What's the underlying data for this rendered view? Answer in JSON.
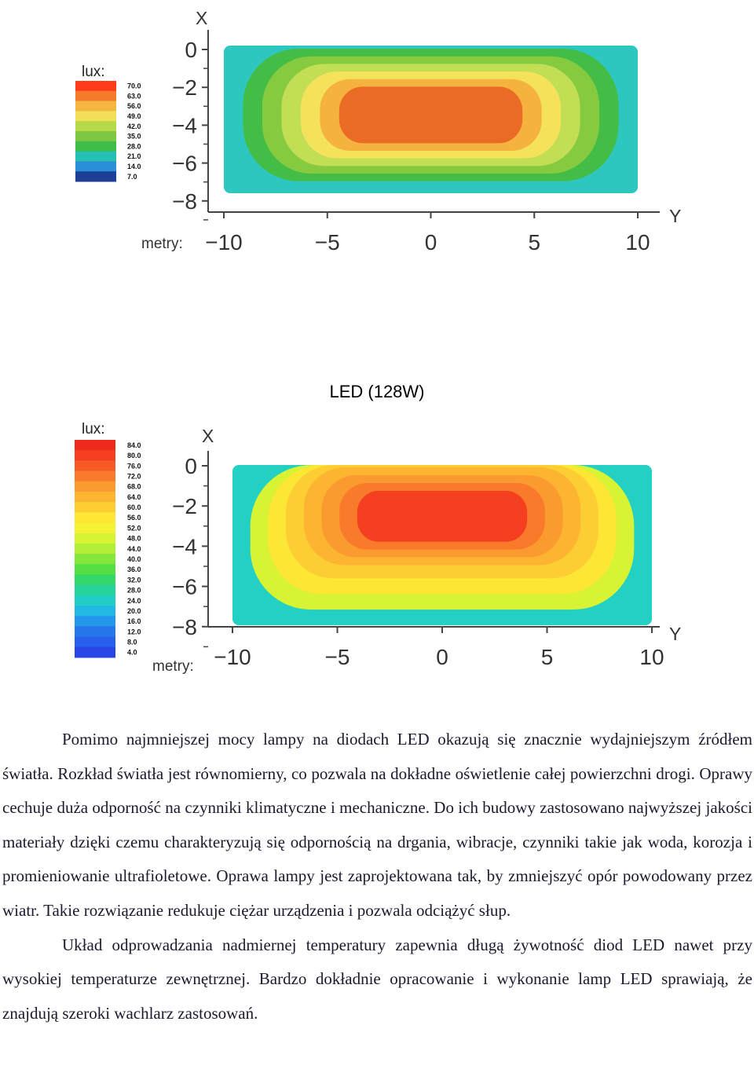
{
  "chart_data": [
    {
      "type": "heatmap",
      "title": "",
      "unit_label": "lux:",
      "axis_x_label": "X",
      "axis_y_label": "Y",
      "meters_label": "metry:",
      "x_ticks": [
        "0",
        "−2",
        "−4",
        "−6",
        "−8"
      ],
      "y_ticks": [
        "−10",
        "−5",
        "0",
        "5",
        "10"
      ],
      "x_range": [
        0,
        -9
      ],
      "y_range": [
        -10,
        10
      ],
      "legend_values": [
        "70.0",
        "63.0",
        "56.0",
        "49.0",
        "42.0",
        "35.0",
        "28.0",
        "21.0",
        "14.0",
        "7.0"
      ],
      "legend_colors": [
        "#ff3b1a",
        "#f47a2c",
        "#f5b640",
        "#f3e05a",
        "#b6d94a",
        "#7fc844",
        "#3fbd48",
        "#26bfb4",
        "#2b8fd8",
        "#1d3f98"
      ],
      "bands": [
        {
          "level": 21.0,
          "color": "#2ec7c0"
        },
        {
          "level": 28.0,
          "color": "#44bd46"
        },
        {
          "level": 35.0,
          "color": "#86ca3f"
        },
        {
          "level": 42.0,
          "color": "#c2de55"
        },
        {
          "level": 49.0,
          "color": "#f4e25b"
        },
        {
          "level": 56.0,
          "color": "#f5b23f"
        },
        {
          "level": 63.0,
          "color": "#ea6c24"
        }
      ]
    },
    {
      "type": "heatmap",
      "title": "",
      "unit_label": "lux:",
      "axis_x_label": "X",
      "axis_y_label": "Y",
      "meters_label": "metry:",
      "x_ticks": [
        "0",
        "−2",
        "−4",
        "−6",
        "−8"
      ],
      "y_ticks": [
        "−10",
        "−5",
        "0",
        "5",
        "10"
      ],
      "x_range": [
        0,
        -9
      ],
      "y_range": [
        -10,
        10
      ],
      "legend_values": [
        "84.0",
        "80.0",
        "76.0",
        "72.0",
        "68.0",
        "64.0",
        "60.0",
        "56.0",
        "52.0",
        "48.0",
        "44.0",
        "40.0",
        "36.0",
        "32.0",
        "28.0",
        "24.0",
        "20.0",
        "16.0",
        "12.0",
        "8.0",
        "4.0"
      ],
      "legend_colors": [
        "#ee2a1c",
        "#f44020",
        "#f75a24",
        "#f97a2a",
        "#fb9a2e",
        "#fdb431",
        "#fdce33",
        "#fde634",
        "#f5f233",
        "#d8f234",
        "#b2ee36",
        "#84e63a",
        "#56de45",
        "#33d868",
        "#25d39a",
        "#22cdc6",
        "#23b8e4",
        "#2496ec",
        "#2677ec",
        "#275eea",
        "#2745e4"
      ],
      "bands": [
        {
          "level": 40.0,
          "color": "#22d0c4"
        },
        {
          "level": 52.0,
          "color": "#d8f234"
        },
        {
          "level": 60.0,
          "color": "#fde634"
        },
        {
          "level": 64.0,
          "color": "#fdce33"
        },
        {
          "level": 68.0,
          "color": "#fdb431"
        },
        {
          "level": 72.0,
          "color": "#fb9a2e"
        },
        {
          "level": 76.0,
          "color": "#f97a2a"
        },
        {
          "level": 80.0,
          "color": "#f44020"
        }
      ]
    }
  ],
  "caption": "LED (128W)",
  "paragraphs": [
    "Pomimo najmniejszej mocy lampy na diodach LED okazują się znacznie wydajniejszym źródłem światła. Rozkład światła jest równomierny, co pozwala na dokładne oświetlenie całej powierzchni drogi. Oprawy cechuje duża odporność na czynniki klimatyczne i mechaniczne. Do ich budowy zastosowano najwyższej jakości materiały dzięki czemu charakteryzują się odpornością na drgania, wibracje, czynniki takie jak woda, korozja i promieniowanie ultrafioletowe. Oprawa lampy jest zaprojektowana tak, by zmniejszyć opór powodowany przez wiatr. Takie rozwiązanie redukuje ciężar urządzenia i pozwala odciążyć słup.",
    "Układ odprowadzania nadmiernej temperatury zapewnia długą żywotność diod LED nawet przy wysokiej temperaturze zewnętrznej. Bardzo dokładnie opracowanie i wykonanie lamp LED sprawiają, że znajdują szeroki wachlarz zastosowań."
  ]
}
